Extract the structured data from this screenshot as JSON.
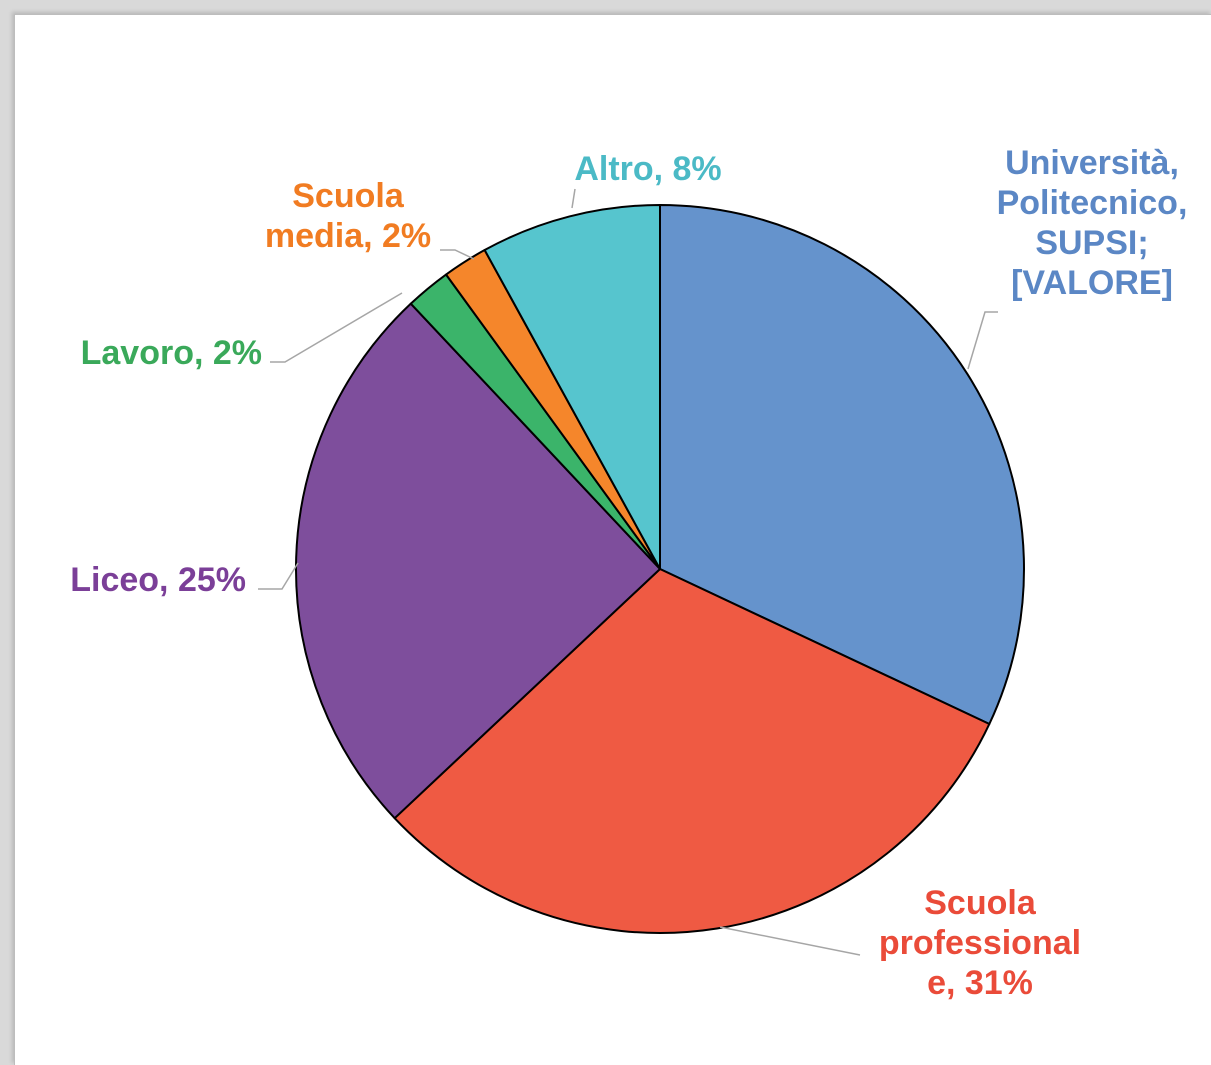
{
  "chart_data": {
    "type": "pie",
    "title": "",
    "slices": [
      {
        "label": "Università, Politecnico, SUPSI",
        "value": 32,
        "color": "#6593cc",
        "text_color": "#5b87c5",
        "label_lines": [
          "Università,",
          "Politecnico,",
          "SUPSI;",
          "[VALORE]"
        ]
      },
      {
        "label": "Scuola professionale",
        "value": 31,
        "color": "#ef5a43",
        "text_color": "#ea4b39",
        "label_lines": [
          "Scuola",
          "professional",
          "e, 31%"
        ]
      },
      {
        "label": "Liceo",
        "value": 25,
        "color": "#7e4e9c",
        "text_color": "#7b3f98",
        "label_lines": [
          "Liceo, 25%"
        ]
      },
      {
        "label": "Lavoro",
        "value": 2,
        "color": "#3bb46a",
        "text_color": "#3aa95a",
        "label_lines": [
          "Lavoro, 2%"
        ]
      },
      {
        "label": "Scuola media",
        "value": 2,
        "color": "#f5862b",
        "text_color": "#f17c22",
        "label_lines": [
          "Scuola",
          "media, 2%"
        ]
      },
      {
        "label": "Altro",
        "value": 8,
        "color": "#56c5ce",
        "text_color": "#4bbac6",
        "label_lines": [
          "Altro, 8%"
        ]
      }
    ],
    "start_angle_deg": 0,
    "direction": "clockwise",
    "legend": "none"
  }
}
